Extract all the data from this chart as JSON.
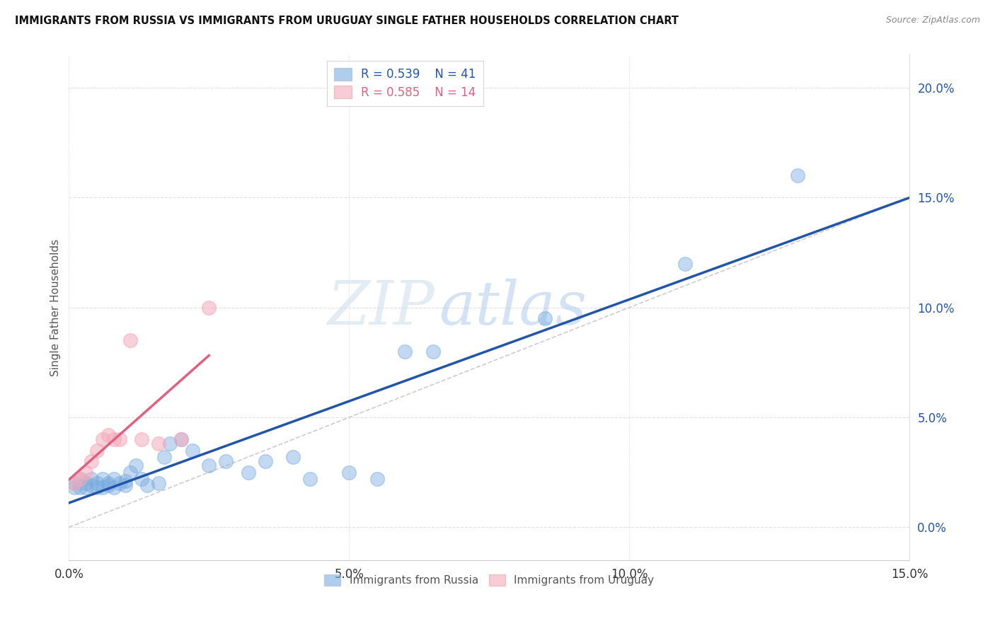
{
  "title": "IMMIGRANTS FROM RUSSIA VS IMMIGRANTS FROM URUGUAY SINGLE FATHER HOUSEHOLDS CORRELATION CHART",
  "source": "Source: ZipAtlas.com",
  "ylabel": "Single Father Households",
  "xlim": [
    0.0,
    0.15
  ],
  "ylim": [
    -0.015,
    0.215
  ],
  "yticks": [
    0.0,
    0.05,
    0.1,
    0.15,
    0.2
  ],
  "xticks": [
    0.0,
    0.05,
    0.1,
    0.15
  ],
  "legend_label_russia": "Immigrants from Russia",
  "legend_label_uruguay": "Immigrants from Uruguay",
  "R_russia": "0.539",
  "N_russia": "41",
  "R_uruguay": "0.585",
  "N_uruguay": "14",
  "color_russia": "#7AACE0",
  "color_uruguay": "#F4AABC",
  "color_russia_line": "#2255AA",
  "color_uruguay_line": "#E06080",
  "color_diagonal": "#CCCCCC",
  "russia_x": [
    0.001,
    0.001,
    0.002,
    0.002,
    0.003,
    0.003,
    0.004,
    0.004,
    0.005,
    0.005,
    0.006,
    0.006,
    0.007,
    0.007,
    0.008,
    0.008,
    0.009,
    0.01,
    0.01,
    0.011,
    0.012,
    0.013,
    0.014,
    0.016,
    0.017,
    0.018,
    0.02,
    0.022,
    0.025,
    0.028,
    0.032,
    0.035,
    0.04,
    0.043,
    0.05,
    0.055,
    0.06,
    0.065,
    0.085,
    0.11,
    0.13
  ],
  "russia_y": [
    0.02,
    0.018,
    0.022,
    0.018,
    0.02,
    0.018,
    0.022,
    0.019,
    0.02,
    0.018,
    0.022,
    0.018,
    0.02,
    0.019,
    0.022,
    0.018,
    0.02,
    0.019,
    0.021,
    0.025,
    0.028,
    0.022,
    0.019,
    0.02,
    0.032,
    0.038,
    0.04,
    0.035,
    0.028,
    0.03,
    0.025,
    0.03,
    0.032,
    0.022,
    0.025,
    0.022,
    0.08,
    0.08,
    0.095,
    0.12,
    0.16
  ],
  "uruguay_x": [
    0.001,
    0.002,
    0.003,
    0.004,
    0.005,
    0.006,
    0.007,
    0.008,
    0.009,
    0.011,
    0.013,
    0.016,
    0.02,
    0.025
  ],
  "uruguay_y": [
    0.02,
    0.022,
    0.025,
    0.03,
    0.035,
    0.04,
    0.042,
    0.04,
    0.04,
    0.085,
    0.04,
    0.038,
    0.04,
    0.1
  ],
  "background_color": "#FFFFFF",
  "grid_color": "#E0E0E0"
}
